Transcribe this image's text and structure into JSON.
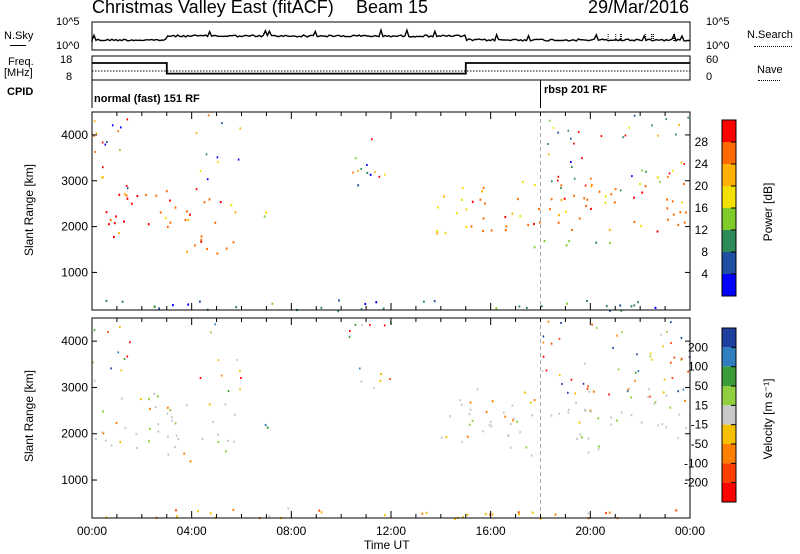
{
  "header": {
    "radar_title": "Christmas Valley East (fitACF)",
    "beam": "Beam 15",
    "date": "29/Mar/2016"
  },
  "top_panels": {
    "nsky_label": "N.Sky",
    "nsky_ticks": [
      "10^5",
      "10^0"
    ],
    "nsearch_label": "N.Search",
    "nsearch_ticks": [
      "10^5",
      "10^0"
    ],
    "freq_label": "Freq.",
    "freq_unit": "[MHz]",
    "freq_ticks": [
      "18",
      "8"
    ],
    "nave_label": "Nave",
    "nave_ticks": [
      "60",
      "0"
    ],
    "cpid_label": "CPID",
    "cpid_segments": [
      {
        "label": "normal (fast) 151 RF",
        "start_hour": 0,
        "end_hour": 18
      },
      {
        "label": "rbsp 201 RF",
        "start_hour": 18,
        "end_hour": 24
      }
    ],
    "freq_steps": [
      {
        "start_hour": 0,
        "end_hour": 3,
        "mhz": 15.5
      },
      {
        "start_hour": 3,
        "end_hour": 15,
        "mhz": 10.2
      },
      {
        "start_hour": 15,
        "end_hour": 24,
        "mhz": 15.5
      }
    ]
  },
  "chart_data": [
    {
      "type": "heatmap",
      "quantity": "Power",
      "ylabel": "Slant Range [km]",
      "ylim": [
        180,
        4500
      ],
      "xlim_hours": [
        0,
        24
      ],
      "y_ticks": [
        1000,
        2000,
        3000,
        4000
      ],
      "colorbar_label": "Power [dB]",
      "colorbar_ticks": [
        "28",
        "24",
        "20",
        "16",
        "12",
        "8",
        "4"
      ],
      "colors": [
        "#ff0000",
        "#ff6a00",
        "#ffb000",
        "#f2e000",
        "#7ecb2a",
        "#2e8b57",
        "#1f4fa0",
        "#0000ff"
      ],
      "regions": [
        {
          "name": "early_arc",
          "hours": [
            0,
            2.0
          ],
          "range_km": [
            1700,
            2800
          ],
          "color_index": 0
        },
        {
          "name": "early_arc_tail",
          "hours": [
            2.0,
            3.0
          ],
          "range_km": [
            2000,
            2900
          ],
          "color_index": 1
        },
        {
          "name": "post_gap_band",
          "hours": [
            3.0,
            5.8
          ],
          "range_km": [
            1400,
            2700
          ],
          "color_index": 1
        },
        {
          "name": "patch_0630",
          "hours": [
            6.6,
            7.1
          ],
          "range_km": [
            1700,
            2400
          ],
          "color_index": 4
        },
        {
          "name": "noon_echo",
          "hours": [
            10.5,
            11.6
          ],
          "range_km": [
            2900,
            3400
          ],
          "color_index": 6
        },
        {
          "name": "afternoon_slant",
          "hours": [
            13.8,
            15.2
          ],
          "range_km": [
            1800,
            3000
          ],
          "color_index": 3
        },
        {
          "name": "evening_band",
          "hours": [
            15.0,
            24.0
          ],
          "range_km": [
            1900,
            3000
          ],
          "color_index": 1
        },
        {
          "name": "evening_lower_band",
          "hours": [
            16.4,
            21.0
          ],
          "range_km": [
            1550,
            1750
          ],
          "color_index": 4
        },
        {
          "name": "near_range_ground",
          "hours": [
            0.5,
            24.0
          ],
          "range_km": [
            180,
            420
          ],
          "color_index": 5
        }
      ]
    },
    {
      "type": "heatmap",
      "quantity": "Velocity",
      "xlabel": "Time UT",
      "ylabel": "Slant Range [km]",
      "ylim": [
        180,
        4500
      ],
      "xlim_hours": [
        0,
        24
      ],
      "x_ticks": [
        "00:00",
        "04:00",
        "08:00",
        "12:00",
        "16:00",
        "20:00",
        "00:00"
      ],
      "y_ticks": [
        1000,
        2000,
        3000,
        4000
      ],
      "colorbar_label": "Velocity [m s⁻¹]",
      "colorbar_ticks": [
        "200",
        "100",
        "50",
        "15",
        "-15",
        "-50",
        "-100",
        "-200"
      ],
      "colors": [
        "#1f3fa0",
        "#2f7fbf",
        "#3a9d3a",
        "#8fcf40",
        "#c8c8c8",
        "#f5c000",
        "#ff8000",
        "#ff4000",
        "#ff0000"
      ],
      "regions": [
        {
          "name": "early_arc",
          "hours": [
            0,
            3.0
          ],
          "range_km": [
            1700,
            2900
          ],
          "color_index": 4
        },
        {
          "name": "post_gap_band",
          "hours": [
            3.0,
            5.8
          ],
          "range_km": [
            1400,
            2700
          ],
          "color_index": 4
        },
        {
          "name": "patch_0630",
          "hours": [
            6.6,
            7.1
          ],
          "range_km": [
            1700,
            2400
          ],
          "color_index": 1
        },
        {
          "name": "noon_echo",
          "hours": [
            10.5,
            11.6
          ],
          "range_km": [
            2900,
            3400
          ],
          "color_index": 4
        },
        {
          "name": "afternoon_slant",
          "hours": [
            13.8,
            15.2
          ],
          "range_km": [
            1800,
            3000
          ],
          "color_index": 4
        },
        {
          "name": "evening_band",
          "hours": [
            15.0,
            24.0
          ],
          "range_km": [
            1900,
            3000
          ],
          "color_index": 4
        },
        {
          "name": "evening_lower_band",
          "hours": [
            16.4,
            21.0
          ],
          "range_km": [
            1550,
            1750
          ],
          "color_index": 4
        },
        {
          "name": "near_range_ground",
          "hours": [
            0.5,
            24.0
          ],
          "range_km": [
            180,
            420
          ],
          "color_index": 5
        }
      ]
    }
  ]
}
